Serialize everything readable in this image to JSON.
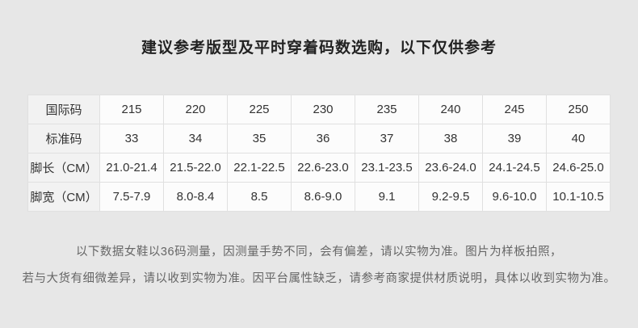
{
  "page": {
    "title": "建议参考版型及平时穿着码数选购，以下仅供参考"
  },
  "colors": {
    "page_background": "#e7e7e7",
    "data_cell_background": "#fcfcfc",
    "label_cell_background": "#f2f2f2",
    "border": "#e0e0e0",
    "title_text": "#222222",
    "table_text": "#333333",
    "footer_text": "#666666"
  },
  "size_table": {
    "rows": [
      {
        "label": "国际码",
        "values": [
          "215",
          "220",
          "225",
          "230",
          "235",
          "240",
          "245",
          "250"
        ]
      },
      {
        "label": "标准码",
        "values": [
          "33",
          "34",
          "35",
          "36",
          "37",
          "38",
          "39",
          "40"
        ]
      },
      {
        "label": "脚长（CM）",
        "values": [
          "21.0-21.4",
          "21.5-22.0",
          "22.1-22.5",
          "22.6-23.0",
          "23.1-23.5",
          "23.6-24.0",
          "24.1-24.5",
          "24.6-25.0"
        ]
      },
      {
        "label": "脚宽（CM）",
        "values": [
          "7.5-7.9",
          "8.0-8.4",
          "8.5",
          "8.6-9.0",
          "9.1",
          "9.2-9.5",
          "9.6-10.0",
          "10.1-10.5"
        ]
      }
    ]
  },
  "footer": {
    "line1": "以下数据女鞋以36码测量，因测量手势不同，会有偏差，请以实物为准。图片为样板拍照，",
    "line2": "若与大货有细微差异，请以收到实物为准。因平台属性缺乏，请参考商家提供材质说明，具体以收到实物为准。"
  }
}
